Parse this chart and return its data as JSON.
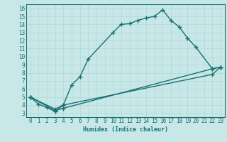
{
  "xlabel": "Humidex (Indice chaleur)",
  "background_color": "#c8e8e8",
  "grid_color": "#b0d8d8",
  "line_color": "#1a7070",
  "xlim": [
    -0.5,
    23.5
  ],
  "ylim": [
    2.5,
    16.5
  ],
  "xticks": [
    0,
    1,
    2,
    3,
    4,
    5,
    6,
    7,
    8,
    9,
    10,
    11,
    12,
    13,
    14,
    15,
    16,
    17,
    18,
    19,
    20,
    21,
    22,
    23
  ],
  "yticks": [
    3,
    4,
    5,
    6,
    7,
    8,
    9,
    10,
    11,
    12,
    13,
    14,
    15,
    16
  ],
  "line1_x": [
    0,
    1,
    2,
    3,
    4,
    5,
    6,
    7,
    10,
    11,
    12,
    13,
    14,
    15,
    16,
    17,
    18,
    19,
    20,
    22,
    23
  ],
  "line1_y": [
    5.0,
    4.1,
    3.7,
    3.2,
    4.0,
    6.5,
    7.5,
    9.7,
    13.0,
    14.0,
    14.1,
    14.5,
    14.8,
    15.0,
    15.8,
    14.5,
    13.7,
    12.3,
    11.2,
    8.5,
    8.7
  ],
  "line2_x": [
    0,
    3,
    4,
    22,
    23
  ],
  "line2_y": [
    5.0,
    3.3,
    3.6,
    8.5,
    8.7
  ],
  "line3_x": [
    0,
    3,
    4,
    22,
    23
  ],
  "line3_y": [
    5.0,
    3.5,
    4.0,
    7.8,
    8.7
  ],
  "tick_fontsize": 5.5,
  "label_fontsize": 6.0
}
